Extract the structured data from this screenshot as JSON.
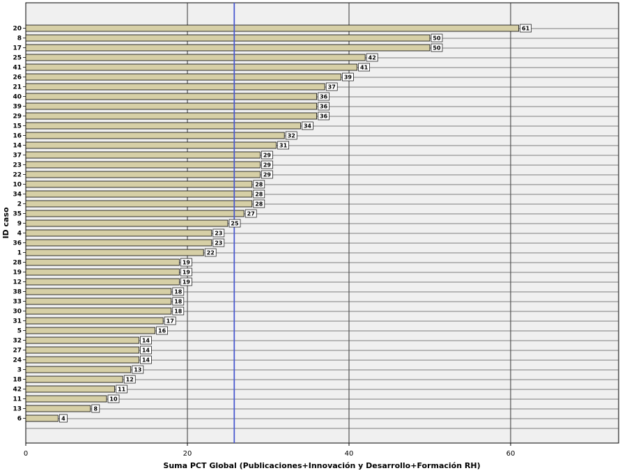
{
  "chart_data": {
    "type": "bar",
    "orientation": "horizontal",
    "xlabel": "Suma PCT Global (Publicaciones+Innovación y Desarrollo+Formación RH)",
    "ylabel": "ID caso",
    "xlim": [
      0,
      73
    ],
    "xticks": [
      0,
      20,
      40,
      60
    ],
    "reference_line_x": 25.8,
    "grid": true,
    "colors": {
      "bar": "#d6cfa6",
      "background": "#f0f0f0",
      "reference_line": "#4a5ad0"
    },
    "categories": [
      "20",
      "8",
      "17",
      "25",
      "41",
      "26",
      "21",
      "40",
      "39",
      "29",
      "15",
      "16",
      "14",
      "37",
      "23",
      "22",
      "10",
      "34",
      "2",
      "35",
      "9",
      "4",
      "36",
      "1",
      "28",
      "19",
      "12",
      "38",
      "33",
      "30",
      "31",
      "5",
      "32",
      "27",
      "24",
      "3",
      "18",
      "42",
      "11",
      "13",
      "6"
    ],
    "values": [
      61,
      50,
      50,
      42,
      41,
      39,
      37,
      36,
      36,
      36,
      34,
      32,
      31,
      29,
      29,
      29,
      28,
      28,
      28,
      27,
      25,
      23,
      23,
      22,
      19,
      19,
      19,
      18,
      18,
      18,
      17,
      16,
      14,
      14,
      14,
      13,
      12,
      11,
      10,
      8,
      4
    ]
  }
}
